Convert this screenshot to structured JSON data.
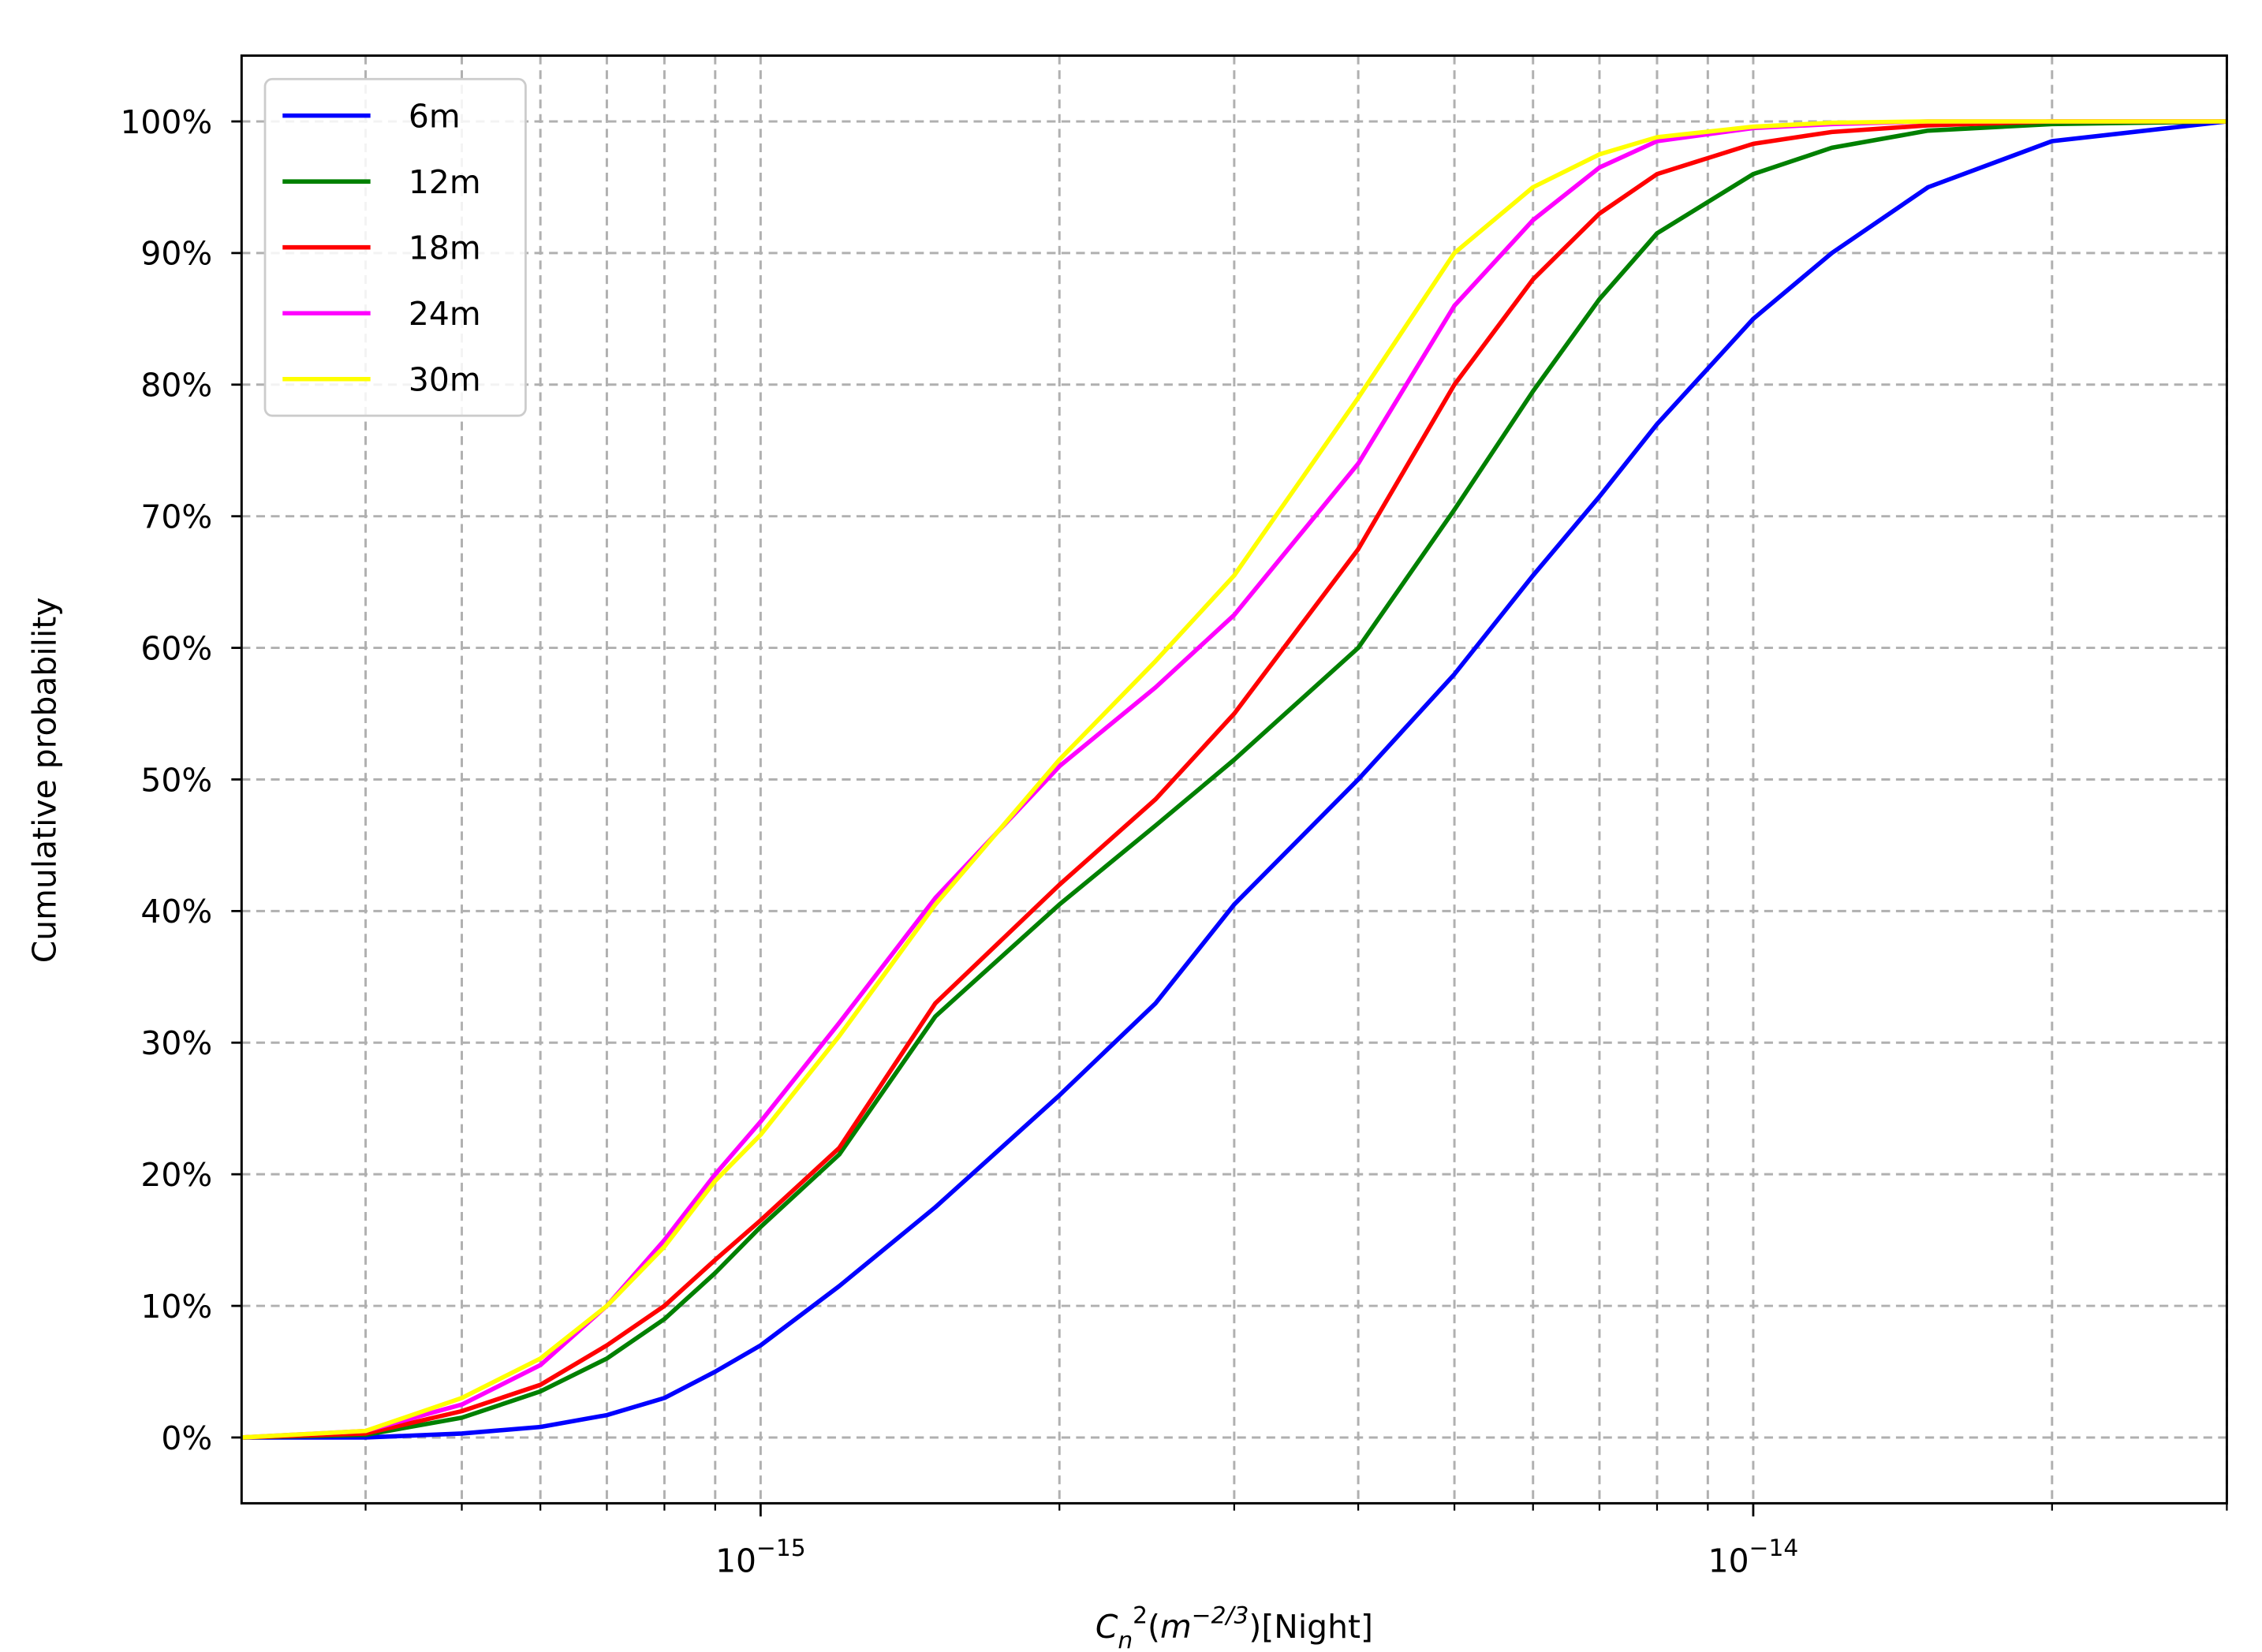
{
  "chart_data": {
    "type": "line",
    "ylabel": "Cumulative probability",
    "xlabel": [
      {
        "text": "C",
        "style": "italic"
      },
      {
        "text": "n",
        "style": "sub-italic"
      },
      {
        "text": "2",
        "style": "sup"
      },
      {
        "text": "(",
        "style": "normal"
      },
      {
        "text": "m",
        "style": "italic"
      },
      {
        "text": "−2/3",
        "style": "sup-italic"
      },
      {
        "text": ")[Night]",
        "style": "normal"
      }
    ],
    "xscale": "log",
    "grid": true,
    "legend": "upper left",
    "xlim": [
      3e-16,
      3e-14
    ],
    "ylim": [
      -5,
      105
    ],
    "xticks": [
      {
        "value": 1e-15,
        "label": "10",
        "exponent": "−15"
      },
      {
        "value": 1e-14,
        "label": "10",
        "exponent": "−14"
      }
    ],
    "xminor_ticks": [
      4e-16,
      5e-16,
      6e-16,
      7e-16,
      8e-16,
      9e-16,
      2e-15,
      3e-15,
      4e-15,
      5e-15,
      6e-15,
      7e-15,
      8e-15,
      9e-15,
      2e-14,
      3e-14
    ],
    "yticks": [
      {
        "value": 0,
        "label": "0%"
      },
      {
        "value": 10,
        "label": "10%"
      },
      {
        "value": 20,
        "label": "20%"
      },
      {
        "value": 30,
        "label": "30%"
      },
      {
        "value": 40,
        "label": "40%"
      },
      {
        "value": 50,
        "label": "50%"
      },
      {
        "value": 60,
        "label": "60%"
      },
      {
        "value": 70,
        "label": "70%"
      },
      {
        "value": 80,
        "label": "80%"
      },
      {
        "value": 90,
        "label": "90%"
      },
      {
        "value": 100,
        "label": "100%"
      }
    ],
    "x": [
      3e-16,
      4e-16,
      5e-16,
      6e-16,
      7e-16,
      8e-16,
      9e-16,
      1e-15,
      1.2e-15,
      1.5e-15,
      2e-15,
      2.5e-15,
      3e-15,
      4e-15,
      5e-15,
      6e-15,
      7e-15,
      8e-15,
      1e-14,
      1.2e-14,
      1.5e-14,
      2e-14,
      3e-14
    ],
    "series": [
      {
        "name": "6m",
        "color": "#0000ff",
        "values": [
          0,
          0,
          0.3,
          0.8,
          1.7,
          3,
          5,
          7,
          11.5,
          17.5,
          26,
          33,
          40.5,
          50,
          58,
          65.5,
          71.5,
          77,
          85,
          90,
          95,
          98.5,
          100
        ]
      },
      {
        "name": "12m",
        "color": "#008000",
        "values": [
          0,
          0.2,
          1.5,
          3.5,
          6,
          9,
          12.5,
          16,
          21.5,
          32,
          40.5,
          46.5,
          51.5,
          60,
          70.5,
          79.5,
          86.5,
          91.5,
          96,
          98,
          99.3,
          99.8,
          100
        ]
      },
      {
        "name": "18m",
        "color": "#ff0000",
        "values": [
          0,
          0.3,
          2,
          4,
          7,
          10,
          13.5,
          16.5,
          22,
          33,
          42,
          48.5,
          55,
          67.5,
          80,
          88,
          93,
          96,
          98.3,
          99.2,
          99.7,
          100,
          100
        ]
      },
      {
        "name": "24m",
        "color": "#ff00ff",
        "values": [
          0,
          0.5,
          2.5,
          5.5,
          10,
          15,
          20,
          24,
          31.5,
          41,
          51,
          57,
          62.5,
          74,
          86,
          92.5,
          96.5,
          98.5,
          99.5,
          99.8,
          100,
          100,
          100
        ]
      },
      {
        "name": "30m",
        "color": "#ffff00",
        "values": [
          0,
          0.5,
          3,
          6,
          10,
          14.5,
          19.5,
          23,
          30.5,
          40.5,
          51.5,
          59,
          65.5,
          79,
          90,
          95,
          97.5,
          98.8,
          99.6,
          99.9,
          100,
          100,
          100
        ]
      }
    ]
  }
}
